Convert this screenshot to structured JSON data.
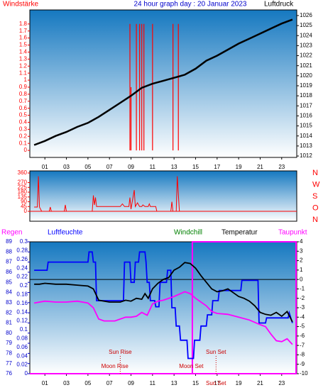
{
  "chart_data": [
    {
      "type": "line",
      "title": "24 hour graph day : 20 Januar 2023",
      "xlim": [
        -0.4,
        24.4
      ],
      "xticks": [
        {
          "value": 1,
          "label": "01"
        },
        {
          "value": 3,
          "label": "03"
        },
        {
          "value": 5,
          "label": "05"
        },
        {
          "value": 7,
          "label": "07"
        },
        {
          "value": 9,
          "label": "09"
        },
        {
          "value": 11,
          "label": "11"
        },
        {
          "value": 13,
          "label": "13"
        },
        {
          "value": 15,
          "label": "15"
        },
        {
          "value": 17,
          "label": "17"
        },
        {
          "value": 19,
          "label": "19"
        },
        {
          "value": 21,
          "label": "21"
        },
        {
          "value": 23,
          "label": "23"
        }
      ],
      "ylim": [
        -0.1,
        2.0
      ],
      "yticks": [
        0,
        0.1,
        0.2,
        0.3,
        0.4,
        0.5,
        0.6,
        0.7,
        0.8,
        0.9,
        1,
        1.1,
        1.2,
        1.3,
        1.4,
        1.5,
        1.6,
        1.7,
        1.8
      ],
      "y2lim": [
        1011.86,
        1026.56
      ],
      "y2ticks": [
        1012,
        1013,
        1014,
        1015,
        1016,
        1017,
        1018,
        1019,
        1020,
        1021,
        1022,
        1023,
        1024,
        1025,
        1026
      ],
      "series": [
        {
          "name": "Windstärke",
          "color": "#ff0000",
          "style": "spikes",
          "x": [
            8.9,
            9.0,
            9.5,
            9.8,
            10.0,
            10.2,
            11.0,
            12.9,
            13.4
          ],
          "values": [
            1.8,
            0.9,
            1.8,
            1.8,
            1.8,
            1.8,
            1.8,
            1.8,
            1.8
          ]
        },
        {
          "name": "Luftdruck",
          "color": "#000000",
          "axis": "y2",
          "x": [
            0,
            1,
            2,
            3,
            4,
            5,
            6,
            7,
            8,
            9,
            10,
            11,
            12,
            13,
            14,
            15,
            16,
            17,
            18,
            19,
            20,
            21,
            22,
            23,
            24
          ],
          "values": [
            1013.1,
            1013.5,
            1014.0,
            1014.4,
            1014.9,
            1015.3,
            1015.9,
            1016.6,
            1017.3,
            1018.0,
            1018.8,
            1019.2,
            1019.5,
            1019.8,
            1020.1,
            1020.7,
            1021.5,
            1022.0,
            1022.6,
            1023.2,
            1023.7,
            1024.2,
            1024.7,
            1025.2,
            1025.6
          ]
        }
      ]
    },
    {
      "type": "line",
      "xlim": [
        -0.4,
        24.4
      ],
      "ylim": [
        -93,
        380
      ],
      "yticks": [
        0,
        45,
        90,
        135,
        180,
        225,
        270,
        360
      ],
      "compass_labels": [
        "N",
        "W",
        "S",
        "O",
        "N"
      ],
      "series": [
        {
          "color": "#ff0000",
          "x": [
            0,
            0.3,
            0.4,
            0.5,
            0.7,
            1.4,
            1.5,
            1.6,
            2.8,
            2.9,
            3.0,
            5.4,
            5.5,
            5.6,
            5.7,
            5.8,
            6.0,
            8.0,
            8.2,
            8.4,
            8.8,
            8.9,
            9.0,
            9.3,
            9.4,
            9.6,
            9.8,
            10.0,
            10.1,
            10.3,
            10.6,
            10.7,
            10.8,
            11.3,
            11.4,
            12.7,
            12.8,
            12.9,
            13.2,
            13.3,
            13.5,
            24
          ],
          "values": [
            40,
            40,
            330,
            40,
            0,
            0,
            40,
            0,
            0,
            60,
            0,
            0,
            150,
            60,
            130,
            45,
            45,
            45,
            70,
            45,
            45,
            130,
            20,
            200,
            45,
            80,
            45,
            45,
            60,
            45,
            45,
            70,
            45,
            45,
            0,
            0,
            90,
            0,
            0,
            330,
            0,
            0
          ]
        }
      ]
    },
    {
      "type": "line",
      "xlim": [
        -0.4,
        24.4
      ],
      "xticks": [
        {
          "value": 1,
          "label": "01"
        },
        {
          "value": 3,
          "label": "03"
        },
        {
          "value": 5,
          "label": "05"
        },
        {
          "value": 7,
          "label": "07"
        },
        {
          "value": 9,
          "label": "09"
        },
        {
          "value": 11,
          "label": "11"
        },
        {
          "value": 13,
          "label": "13"
        },
        {
          "value": 15,
          "label": "15"
        },
        {
          "value": 17,
          "label": "17"
        },
        {
          "value": 19,
          "label": "19"
        },
        {
          "value": 21,
          "label": "21"
        },
        {
          "value": 23,
          "label": "23"
        }
      ],
      "ylim": [
        76,
        89
      ],
      "yticks": [
        76,
        77,
        78,
        79,
        80,
        81,
        82,
        83,
        84,
        85,
        86,
        87,
        88,
        89
      ],
      "y2lim": [
        -10,
        4
      ],
      "y2ticks": [
        -10,
        -9,
        -8,
        -7,
        -6,
        -5,
        -4,
        -3,
        -2,
        -1,
        0,
        1,
        2,
        3,
        4
      ],
      "y3label": "Regen",
      "y3lim": [
        0,
        0.3
      ],
      "y3ticks": [
        0,
        0.02,
        0.04,
        0.06,
        0.08,
        0.1,
        0.12,
        0.14,
        0.16,
        0.18,
        0.2,
        0.22,
        0.24,
        0.26,
        0.28,
        0.3
      ],
      "windchill": {
        "name": "Windchill",
        "color": "#008000"
      },
      "highlight": [
        14.7,
        24.4
      ],
      "annotations": [
        {
          "label": "Sun Rise",
          "x": 8.0
        },
        {
          "label": "Moon Rise",
          "x": 7.5
        },
        {
          "label": "Moon Set",
          "x": 14.6
        },
        {
          "label": "Sun Set",
          "x": 16.9
        },
        {
          "label": "Sun Set",
          "x": 16.9
        }
      ],
      "series": [
        {
          "name": "Luftfeuchte",
          "color": "#0000ff",
          "x": [
            0,
            1.2,
            1.3,
            5.0,
            5.1,
            5.4,
            5.5,
            5.7,
            5.8,
            8.3,
            8.4,
            8.9,
            9.0,
            9.3,
            9.4,
            9.7,
            9.8,
            10.3,
            10.4,
            10.5,
            10.7,
            10.8,
            11.2,
            11.3,
            11.6,
            11.7,
            12.3,
            12.4,
            12.7,
            12.8,
            13.1,
            13.2,
            13.5,
            13.6,
            14.2,
            14.3,
            14.8,
            14.9,
            15.4,
            15.5,
            16.0,
            16.1,
            16.5,
            16.6,
            17.1,
            17.2,
            19.2,
            19.3,
            20.8,
            20.9,
            21.5,
            21.6,
            23.6,
            23.7,
            24
          ],
          "values": [
            86.2,
            86.2,
            87.0,
            87.0,
            88.0,
            88.0,
            87.0,
            87.0,
            83.2,
            83.2,
            87.0,
            87.0,
            85.0,
            85.0,
            87.0,
            87.0,
            88.0,
            88.0,
            87.0,
            85.0,
            85.0,
            83.2,
            83.2,
            82.6,
            82.6,
            85.0,
            85.0,
            86.2,
            86.2,
            82.5,
            82.5,
            80.7,
            80.7,
            79.3,
            79.3,
            77.5,
            77.5,
            79.3,
            79.3,
            80.7,
            80.7,
            81.8,
            81.8,
            83.2,
            83.2,
            84.2,
            84.2,
            85.2,
            85.2,
            81.0,
            81.0,
            81.5,
            81.5,
            82.0,
            81.0
          ]
        },
        {
          "name": "Temperatur",
          "color": "#000000",
          "axis": "y2",
          "x": [
            0,
            0.5,
            1,
            2,
            3,
            4,
            5,
            5.5,
            6,
            7,
            8,
            8.5,
            9,
            9.5,
            10,
            10.3,
            10.6,
            11,
            11.5,
            12,
            12.5,
            13,
            13.5,
            14,
            14.5,
            15,
            15.5,
            16,
            16.5,
            17,
            17.5,
            18,
            18.5,
            19,
            19.5,
            20,
            20.5,
            21,
            21.5,
            22,
            22.5,
            23,
            23.5,
            24
          ],
          "values": [
            -0.5,
            -0.5,
            -0.4,
            -0.5,
            -0.5,
            -0.6,
            -0.7,
            -1.0,
            -2.2,
            -2.4,
            -2.4,
            -2.2,
            -2.3,
            -2.0,
            -2.1,
            -1.5,
            -2.0,
            -1.0,
            -0.4,
            0.0,
            0.2,
            1.0,
            1.3,
            1.8,
            1.7,
            1.2,
            0.4,
            -0.3,
            -1.0,
            -1.3,
            -1.2,
            -1.0,
            -1.4,
            -1.8,
            -2.0,
            -2.3,
            -2.8,
            -3.5,
            -3.7,
            -3.8,
            -3.5,
            -3.9,
            -3.4,
            -4.5
          ]
        },
        {
          "name": "Taupunkt",
          "color": "#ff00ff",
          "axis": "y2",
          "x": [
            0,
            1,
            2,
            3,
            4,
            5,
            5.5,
            6,
            6.5,
            7.5,
            8.5,
            9,
            9.5,
            10,
            10.5,
            11,
            11.5,
            12,
            13,
            14,
            14.5,
            15,
            15.5,
            16,
            16.5,
            17,
            18,
            19,
            20,
            21,
            21.5,
            22,
            22.5,
            23,
            23.5,
            24
          ],
          "values": [
            -2.5,
            -2.3,
            -2.4,
            -2.4,
            -2.3,
            -2.5,
            -3.0,
            -4.2,
            -4.4,
            -4.4,
            -4.0,
            -4.0,
            -3.9,
            -3.5,
            -3.8,
            -2.6,
            -2.3,
            -2.2,
            -1.8,
            -1.3,
            -1.5,
            -2.0,
            -2.4,
            -2.8,
            -3.4,
            -3.6,
            -3.7,
            -4.0,
            -4.3,
            -4.8,
            -5.0,
            -5.8,
            -6.5,
            -6.6,
            -6.3,
            -6.9
          ]
        }
      ]
    }
  ]
}
